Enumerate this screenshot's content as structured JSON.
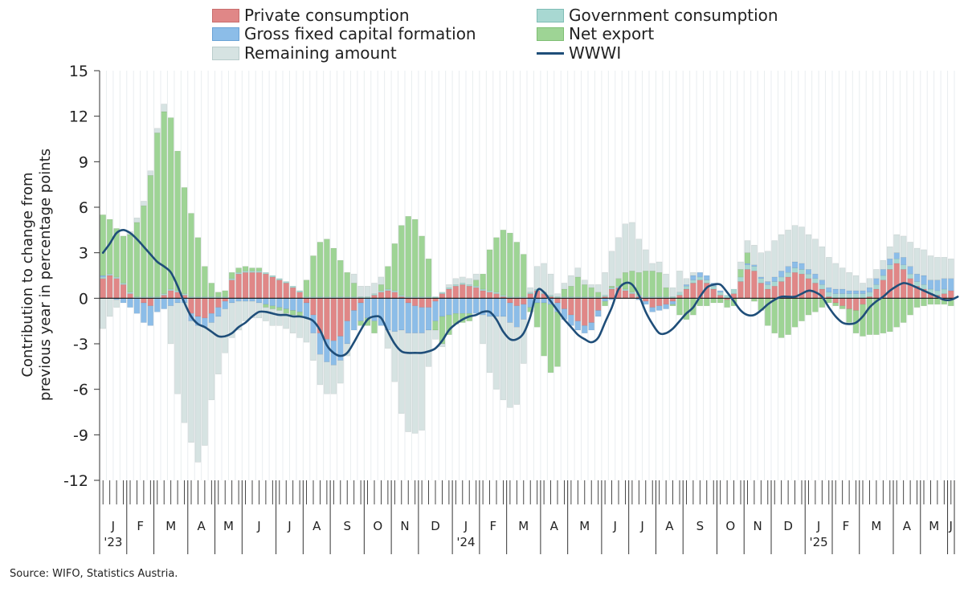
{
  "legend": {
    "private": "Private consumption",
    "government": "Government consumption",
    "gfcf": "Gross fixed capital formation",
    "netexport": "Net export",
    "remaining": "Remaining amount",
    "wwwi": "WWWI"
  },
  "colors": {
    "private": "#e08787",
    "government": "#a8d8d2",
    "gfcf": "#8cbde8",
    "netexport": "#9ed495",
    "remaining": "#d6e3e2",
    "wwwi": "#1f4e79"
  },
  "source": "Source: WIFO, Statistics Austria.",
  "chart_data": {
    "type": "bar",
    "stacked": true,
    "ylabel": "Contribution to change from previous year in percentage points",
    "ylim": [
      -12,
      15
    ],
    "yticks": [
      15,
      12,
      9,
      6,
      3,
      0,
      -3,
      -6,
      -9,
      -12
    ],
    "grid": "vertical",
    "legend_position": "top",
    "x_month_labels": [
      "J",
      "F",
      "M",
      "A",
      "M",
      "J",
      "J",
      "A",
      "S",
      "O",
      "N",
      "D",
      "J",
      "F",
      "M",
      "A",
      "M",
      "J",
      "J",
      "A",
      "S",
      "O",
      "N",
      "D",
      "J",
      "F",
      "M",
      "A",
      "M",
      "J"
    ],
    "x_year_labels": [
      {
        "month_index": 0,
        "label": "'23"
      },
      {
        "month_index": 12,
        "label": "'24"
      },
      {
        "month_index": 24,
        "label": "'25"
      }
    ],
    "weeks_per_month": [
      4,
      4,
      5,
      4,
      4,
      5,
      4,
      4,
      5,
      4,
      4,
      5,
      4,
      4,
      5,
      4,
      5,
      4,
      4,
      4,
      5,
      4,
      4,
      5,
      4,
      4,
      5,
      4,
      4,
      1
    ],
    "series": [
      {
        "name": "Private consumption",
        "key": "private",
        "values": [
          1.3,
          1.5,
          1.3,
          0.9,
          0.3,
          0.0,
          -0.3,
          -0.5,
          0.0,
          0.2,
          0.5,
          0.4,
          0.2,
          -1.0,
          -1.2,
          -1.3,
          -1.0,
          -0.6,
          -0.2,
          1.2,
          1.6,
          1.7,
          1.7,
          1.7,
          1.6,
          1.4,
          1.2,
          1.0,
          0.7,
          0.4,
          -0.3,
          -1.1,
          -2.3,
          -2.7,
          -2.8,
          -2.5,
          -1.5,
          -0.8,
          -0.3,
          0.0,
          0.2,
          0.4,
          0.5,
          0.4,
          0.1,
          -0.3,
          -0.5,
          -0.6,
          -0.6,
          -0.2,
          0.3,
          0.6,
          0.8,
          0.9,
          0.8,
          0.7,
          0.5,
          0.4,
          0.3,
          0.1,
          -0.3,
          -0.5,
          -0.4,
          0.3,
          0.5,
          0.3,
          0.1,
          -0.3,
          -0.7,
          -1.1,
          -1.5,
          -1.8,
          -1.6,
          -0.8,
          0.1,
          0.6,
          0.7,
          0.5,
          0.3,
          0.1,
          -0.2,
          -0.6,
          -0.5,
          -0.4,
          -0.2,
          0.2,
          0.6,
          1.0,
          1.2,
          1.0,
          0.6,
          0.2,
          -0.1,
          0.3,
          1.1,
          1.9,
          1.8,
          1.0,
          0.6,
          0.8,
          1.1,
          1.4,
          1.7,
          1.6,
          1.3,
          1.0,
          0.6,
          0.1,
          -0.3,
          -0.5,
          -0.7,
          -0.8,
          -0.4,
          0.1,
          0.6,
          1.2,
          1.9,
          2.3,
          1.9,
          1.3,
          0.8,
          0.6,
          0.3,
          0.2,
          0.3,
          0.5
        ]
      },
      {
        "name": "Government consumption",
        "key": "government",
        "values": [
          0.1,
          0.1,
          0.1,
          0.1,
          0.1,
          0.1,
          0.1,
          0.1,
          0.1,
          0.1,
          0.1,
          0.1,
          0.1,
          0.1,
          0.1,
          0.1,
          0.1,
          0.1,
          0.1,
          0.1,
          0.1,
          0.1,
          0.1,
          0.1,
          0.1,
          0.1,
          0.1,
          0.1,
          0.1,
          0.1,
          0.1,
          0.1,
          0.1,
          0.1,
          0.1,
          0.1,
          0.1,
          0.1,
          0.1,
          0.1,
          0.1,
          0.1,
          0.1,
          0.1,
          0.1,
          0.1,
          0.1,
          0.1,
          0.1,
          0.1,
          0.1,
          0.1,
          0.1,
          0.1,
          0.1,
          0.1,
          0.1,
          0.1,
          0.1,
          0.1,
          0.1,
          0.1,
          0.1,
          0.1,
          0.1,
          0.1,
          0.1,
          0.1,
          0.1,
          0.1,
          0.1,
          0.1,
          0.1,
          0.1,
          0.1,
          0.1,
          0.1,
          0.1,
          0.1,
          0.1,
          0.1,
          0.1,
          0.1,
          0.1,
          0.1,
          0.2,
          0.2,
          0.2,
          0.2,
          0.2,
          0.2,
          0.2,
          0.2,
          0.3,
          0.3,
          0.3,
          0.3,
          0.3,
          0.3,
          0.3,
          0.3,
          0.3,
          0.3,
          0.3,
          0.3,
          0.3,
          0.3,
          0.3,
          0.3,
          0.3,
          0.3,
          0.3,
          0.3,
          0.3,
          0.3,
          0.3,
          0.3,
          0.3,
          0.3,
          0.3,
          0.3,
          0.3,
          0.3,
          0.3,
          0.3
        ]
      },
      {
        "name": "Gross fixed capital formation",
        "key": "gfcf",
        "values": [
          0.1,
          0.0,
          -0.1,
          -0.3,
          -0.6,
          -1.0,
          -1.3,
          -1.3,
          -0.9,
          -0.7,
          -0.5,
          -0.3,
          -0.3,
          -0.5,
          -0.6,
          -0.6,
          -0.6,
          -0.6,
          -0.5,
          -0.3,
          -0.2,
          -0.2,
          -0.2,
          -0.3,
          -0.4,
          -0.5,
          -0.6,
          -0.7,
          -0.8,
          -0.9,
          -1.0,
          -1.2,
          -1.4,
          -1.5,
          -1.6,
          -1.6,
          -1.5,
          -1.3,
          -1.2,
          -1.3,
          -1.5,
          -1.8,
          -2.1,
          -2.2,
          -2.1,
          -2.0,
          -1.8,
          -1.7,
          -1.5,
          -1.3,
          -1.2,
          -1.1,
          -1.0,
          -1.0,
          -1.0,
          -1.0,
          -1.1,
          -1.2,
          -1.2,
          -1.2,
          -1.3,
          -1.4,
          -1.0,
          -0.6,
          -0.3,
          -0.3,
          -0.4,
          -0.6,
          -0.7,
          -0.7,
          -0.6,
          -0.5,
          -0.5,
          -0.4,
          -0.2,
          -0.1,
          0.0,
          0.0,
          0.0,
          -0.1,
          -0.2,
          -0.3,
          -0.3,
          -0.3,
          -0.2,
          0.0,
          0.1,
          0.3,
          0.3,
          0.3,
          0.2,
          0.1,
          0.0,
          0.0,
          0.0,
          0.1,
          0.1,
          0.1,
          0.2,
          0.3,
          0.4,
          0.4,
          0.4,
          0.4,
          0.3,
          0.3,
          0.3,
          0.3,
          0.3,
          0.3,
          0.2,
          0.2,
          0.2,
          0.3,
          0.4,
          0.4,
          0.4,
          0.4,
          0.5,
          0.5,
          0.5,
          0.6,
          0.6,
          0.7,
          0.7,
          0.8,
          0.9
        ]
      },
      {
        "name": "Net export",
        "key": "netexport",
        "values": [
          4.0,
          3.6,
          3.2,
          3.1,
          3.8,
          4.9,
          6.0,
          8.0,
          10.8,
          12.0,
          11.3,
          9.2,
          7.0,
          5.5,
          3.9,
          2.0,
          0.9,
          0.3,
          0.4,
          0.4,
          0.3,
          0.3,
          0.2,
          0.2,
          -0.2,
          -0.2,
          -0.2,
          -0.3,
          -0.3,
          -0.3,
          1.1,
          2.7,
          3.6,
          3.8,
          3.2,
          2.4,
          1.6,
          0.9,
          -0.3,
          -0.5,
          -0.8,
          0.4,
          1.5,
          3.1,
          4.6,
          5.3,
          5.1,
          4.0,
          2.5,
          -0.6,
          -1.8,
          -1.3,
          -0.7,
          -0.6,
          -0.5,
          0.4,
          1.0,
          2.7,
          3.6,
          4.3,
          4.2,
          3.6,
          2.8,
          -0.3,
          -1.6,
          -3.5,
          -4.5,
          -3.6,
          0.5,
          0.7,
          1.3,
          0.8,
          0.6,
          0.3,
          -0.3,
          0.1,
          0.5,
          1.1,
          1.4,
          1.5,
          1.7,
          1.7,
          1.6,
          0.6,
          -0.1,
          -1.1,
          -1.4,
          -1.1,
          -0.5,
          -0.5,
          -0.3,
          -0.3,
          -0.5,
          -0.5,
          0.5,
          0.7,
          -0.2,
          -0.8,
          -1.8,
          -2.3,
          -2.6,
          -2.4,
          -1.9,
          -1.5,
          -1.1,
          -0.9,
          -0.6,
          -0.3,
          -0.2,
          -0.2,
          -0.9,
          -1.5,
          -2.1,
          -2.4,
          -2.4,
          -2.3,
          -2.2,
          -1.9,
          -1.6,
          -1.1,
          -0.6,
          -0.5,
          -0.4,
          -0.4,
          -0.4,
          -0.5,
          -1.0
        ]
      },
      {
        "name": "Remaining amount",
        "key": "remaining",
        "values": [
          -2.0,
          -1.2,
          -0.5,
          0.0,
          0.2,
          0.3,
          0.3,
          0.3,
          0.3,
          0.5,
          -2.5,
          -6.0,
          -7.9,
          -8.0,
          -9.0,
          -7.8,
          -5.1,
          -3.8,
          -2.9,
          -2.3,
          -1.9,
          -1.3,
          -1.1,
          -1.0,
          -0.9,
          -1.1,
          -1.0,
          -1.0,
          -1.2,
          -1.4,
          -1.6,
          -1.8,
          -2.0,
          -2.1,
          -1.9,
          -1.5,
          -0.8,
          0.6,
          0.7,
          0.7,
          0.7,
          0.5,
          -1.2,
          -3.3,
          -5.5,
          -6.5,
          -6.6,
          -6.4,
          -2.4,
          -0.6,
          -0.2,
          0.2,
          0.4,
          0.4,
          0.4,
          0.4,
          -1.9,
          -3.7,
          -4.8,
          -5.5,
          -5.6,
          -5.1,
          -2.9,
          0.3,
          1.5,
          1.9,
          1.4,
          0.2,
          0.4,
          0.7,
          0.6,
          0.3,
          0.2,
          0.5,
          1.5,
          2.3,
          2.7,
          3.2,
          3.2,
          2.2,
          1.4,
          0.5,
          0.7,
          0.9,
          0.6,
          1.4,
          0.4,
          0.2,
          0.0,
          0.0,
          0.0,
          0.0,
          0.0,
          0.0,
          0.5,
          0.8,
          1.3,
          1.6,
          2.0,
          2.4,
          2.4,
          2.4,
          2.4,
          2.4,
          2.3,
          2.3,
          2.2,
          2.0,
          1.7,
          1.4,
          1.2,
          1.0,
          0.5,
          0.6,
          0.6,
          0.6,
          0.8,
          1.2,
          1.4,
          1.6,
          1.7,
          1.7,
          1.6,
          1.5,
          1.4,
          1.3,
          1.2,
          1.0,
          1.0
        ]
      }
    ],
    "line_series": {
      "name": "WWWI",
      "key": "wwwi",
      "values": [
        3.0,
        3.6,
        4.3,
        4.5,
        4.3,
        3.9,
        3.4,
        2.9,
        2.4,
        2.1,
        1.7,
        0.8,
        -0.3,
        -1.2,
        -1.7,
        -1.9,
        -2.2,
        -2.5,
        -2.5,
        -2.3,
        -1.9,
        -1.6,
        -1.2,
        -0.9,
        -0.9,
        -1.0,
        -1.1,
        -1.1,
        -1.2,
        -1.2,
        -1.3,
        -1.5,
        -2.1,
        -3.1,
        -3.6,
        -3.8,
        -3.6,
        -2.9,
        -2.1,
        -1.4,
        -1.2,
        -1.3,
        -2.2,
        -3.0,
        -3.5,
        -3.6,
        -3.6,
        -3.6,
        -3.5,
        -3.3,
        -2.8,
        -2.1,
        -1.7,
        -1.4,
        -1.2,
        -1.1,
        -0.9,
        -0.9,
        -1.4,
        -2.2,
        -2.7,
        -2.7,
        -2.3,
        -1.2,
        0.5,
        0.4,
        -0.2,
        -0.8,
        -1.4,
        -1.9,
        -2.4,
        -2.7,
        -2.9,
        -2.6,
        -1.6,
        -0.6,
        0.6,
        1.0,
        0.9,
        0.2,
        -0.9,
        -1.7,
        -2.3,
        -2.3,
        -2.0,
        -1.5,
        -1.0,
        -0.6,
        0.1,
        0.7,
        0.9,
        0.9,
        0.4,
        -0.2,
        -0.8,
        -1.1,
        -1.1,
        -0.8,
        -0.4,
        -0.1,
        0.1,
        0.1,
        0.1,
        0.3,
        0.5,
        0.4,
        0.1,
        -0.6,
        -1.2,
        -1.6,
        -1.7,
        -1.6,
        -1.2,
        -0.6,
        -0.2,
        0.1,
        0.5,
        0.8,
        1.0,
        0.9,
        0.7,
        0.5,
        0.3,
        0.1,
        -0.1,
        -0.1,
        0.1
      ]
    }
  }
}
